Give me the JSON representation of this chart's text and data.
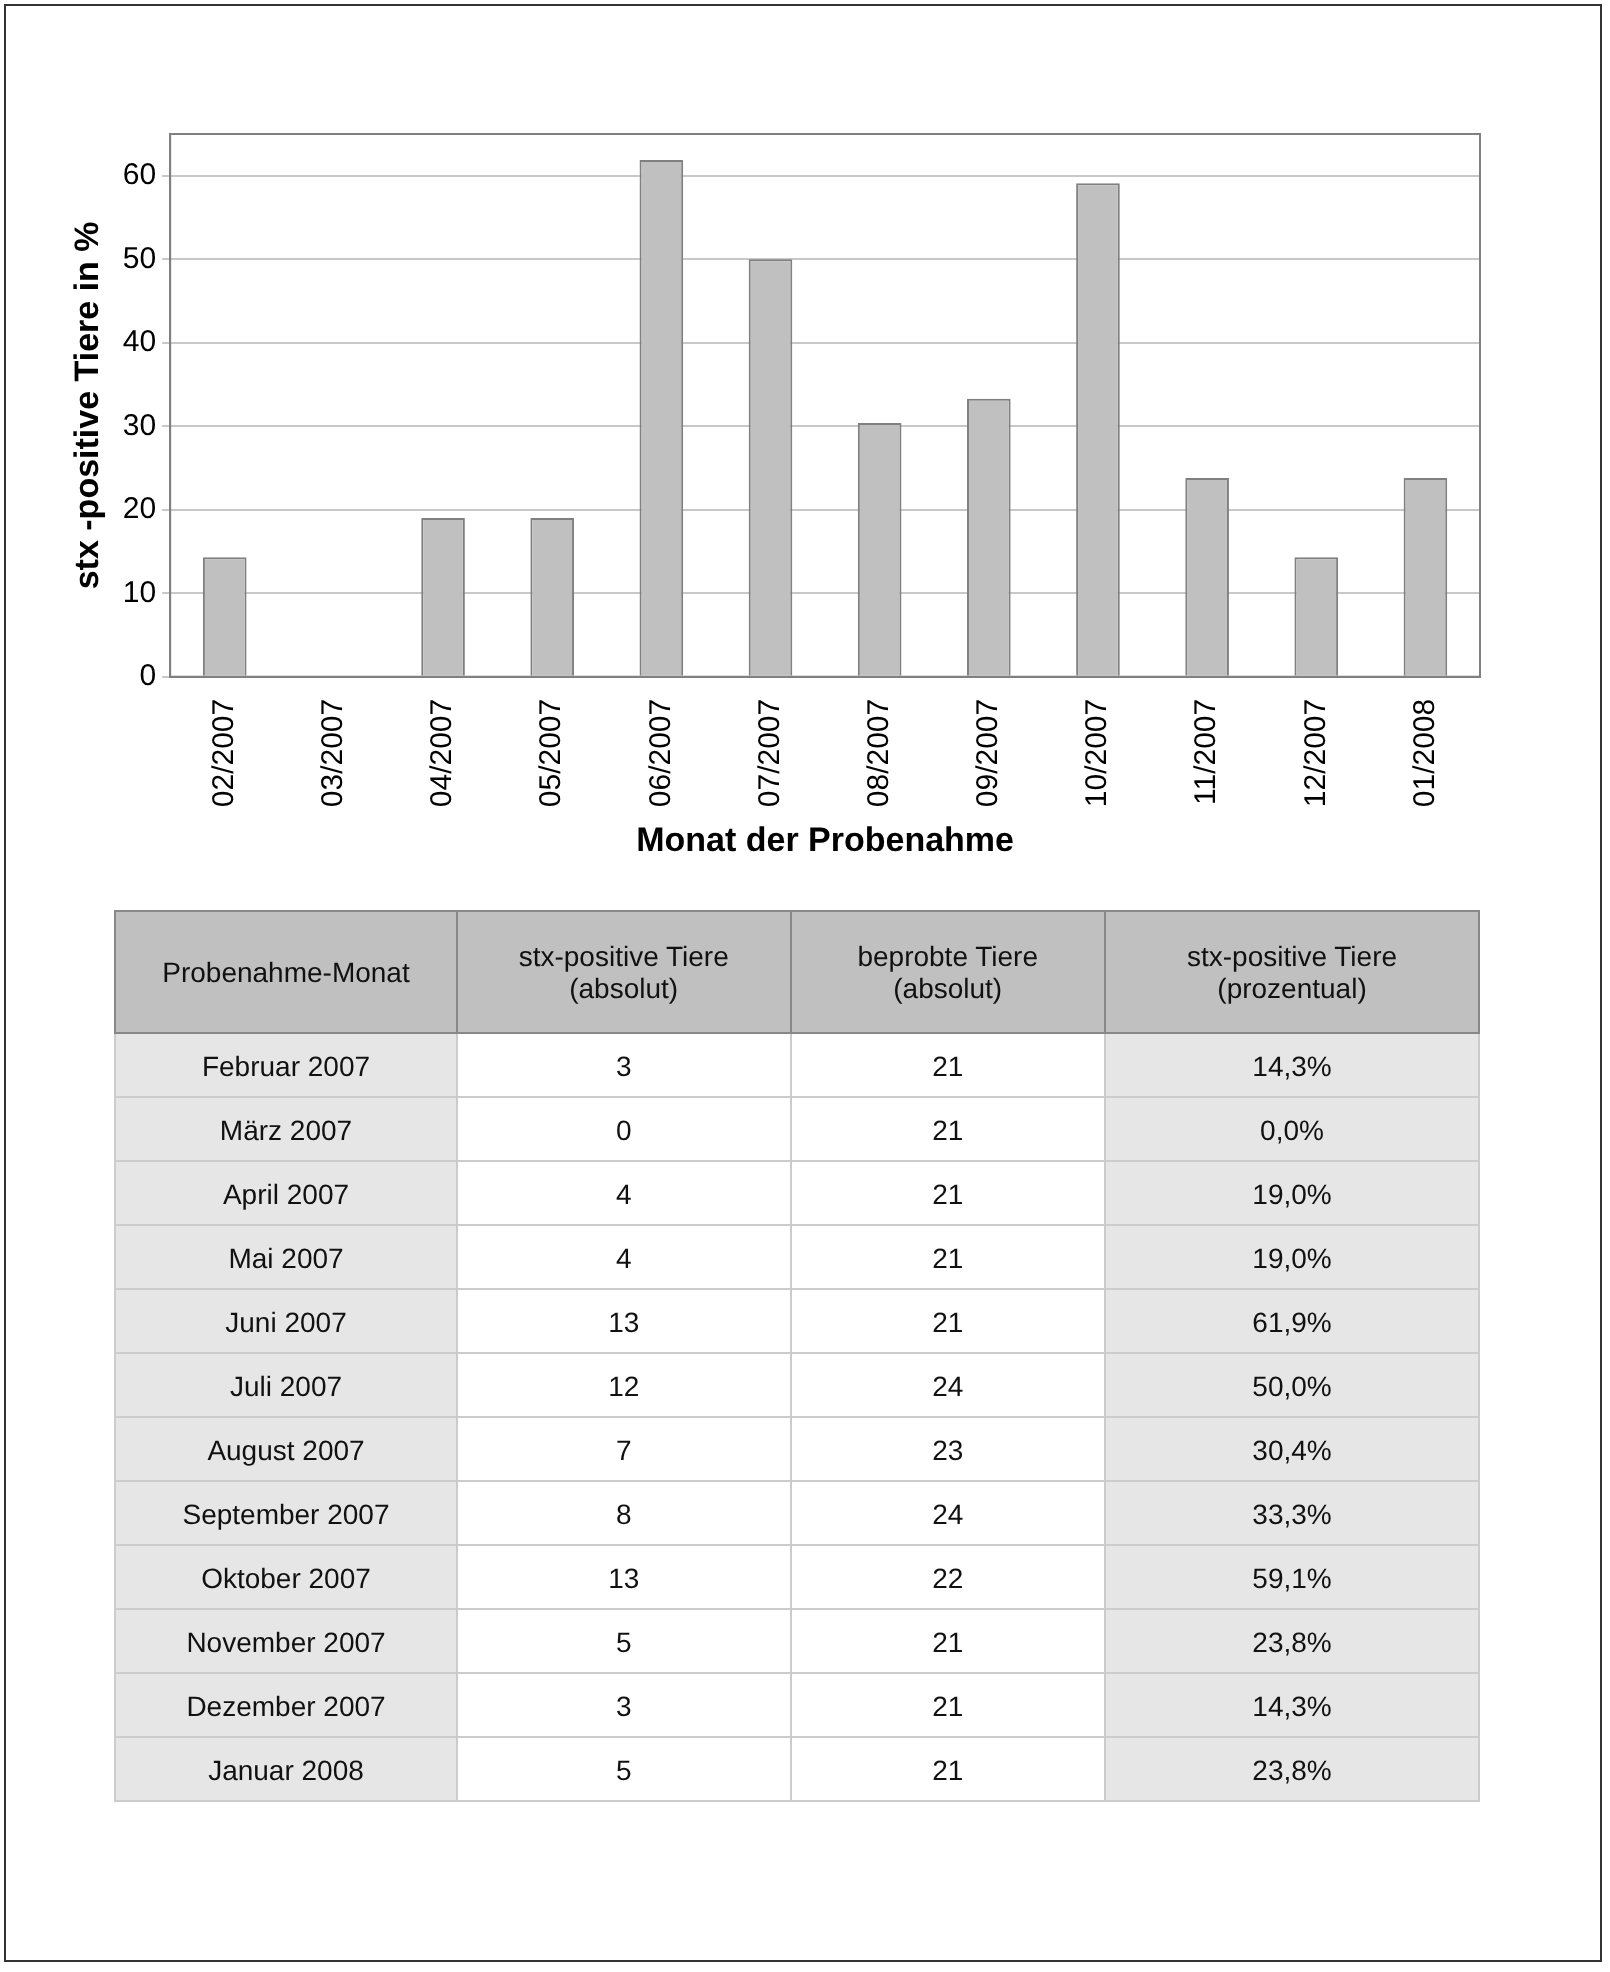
{
  "chart_data": [
    {
      "type": "bar",
      "xlabel": "Monat der Probenahme",
      "ylabel": "stx -positive Tiere in %",
      "categories": [
        "02/2007",
        "03/2007",
        "04/2007",
        "05/2007",
        "06/2007",
        "07/2007",
        "08/2007",
        "09/2007",
        "10/2007",
        "11/2007",
        "12/2007",
        "01/2008"
      ],
      "values": [
        14.3,
        0.0,
        19.0,
        19.0,
        61.9,
        50.0,
        30.4,
        33.3,
        59.1,
        23.8,
        14.3,
        23.8
      ],
      "color": "#c0c0c0",
      "ylim": [
        0,
        65
      ],
      "yticks": [
        0,
        10,
        20,
        30,
        40,
        50,
        60
      ],
      "grid": "y",
      "legend": false
    },
    {
      "type": "other",
      "xlabel": "Probenahme-Monat",
      "data_labels": true,
      "categories": [
        "Februar 2007",
        "März 2007",
        "April 2007",
        "Mai 2007",
        "Juni 2007",
        "Juli 2007",
        "August 2007",
        "September 2007",
        "Oktober 2007",
        "November 2007",
        "Dezember 2007",
        "Januar 2008"
      ],
      "series": [
        {
          "name": "stx-positive Tiere (absolut)",
          "values": [
            3,
            0,
            4,
            4,
            13,
            12,
            7,
            8,
            13,
            5,
            3,
            5
          ]
        },
        {
          "name": "beprobte Tiere (absolut)",
          "values": [
            21,
            21,
            21,
            21,
            21,
            24,
            23,
            24,
            22,
            21,
            21,
            21
          ]
        },
        {
          "name": "stx-positive Tiere (prozentual)",
          "values": [
            14.3,
            0.0,
            19.0,
            19.0,
            61.9,
            50.0,
            30.4,
            33.3,
            59.1,
            23.8,
            14.3,
            23.8
          ],
          "value_labels": [
            "14,3%",
            "0,0%",
            "19,0%",
            "19,0%",
            "61,9%",
            "50,0%",
            "30,4%",
            "33,3%",
            "59,1%",
            "23,8%",
            "14,3%",
            "23,8%"
          ]
        }
      ]
    }
  ]
}
